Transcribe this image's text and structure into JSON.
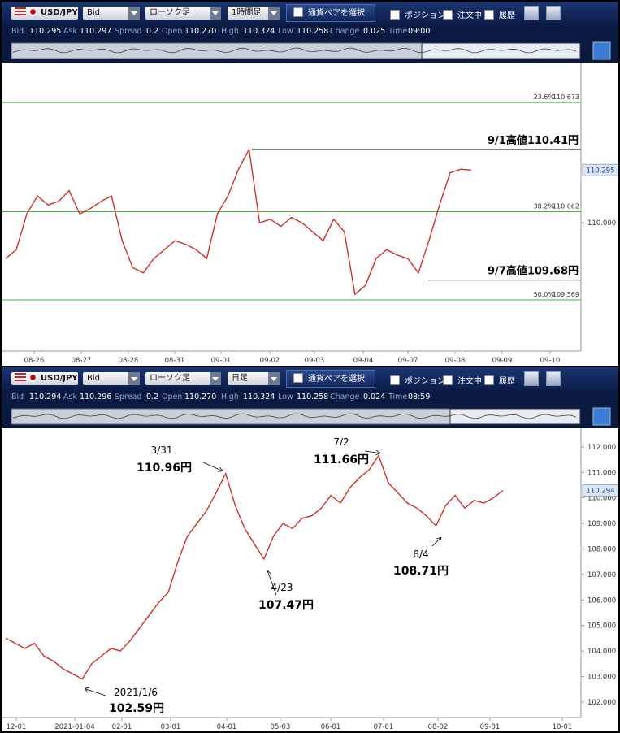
{
  "panels": [
    {
      "toolbar": {
        "pair": "USD/JPY",
        "price_type": "Bid",
        "chart_type": "ローソク足",
        "timeframe": "1時間足",
        "select_pair": "通貨ペアを選択",
        "checkboxes": [
          "ポジション",
          "注文中",
          "履歴"
        ]
      },
      "info": [
        {
          "label": "Bid",
          "value": "110.295"
        },
        {
          "label": "Ask",
          "value": "110.297"
        },
        {
          "label": "Spread",
          "value": "0.2"
        },
        {
          "label": "Open",
          "value": "110.270"
        },
        {
          "label": "High",
          "value": "110.324"
        },
        {
          "label": "Low",
          "value": "110.258"
        },
        {
          "label": "Change",
          "value": "0.025"
        },
        {
          "label": "Time",
          "value": "09:00"
        }
      ],
      "chart_data": {
        "type": "line",
        "color": "#d0302a",
        "values": [
          109.8,
          109.85,
          110.05,
          110.15,
          110.1,
          110.12,
          110.18,
          110.05,
          110.08,
          110.12,
          110.15,
          109.9,
          109.75,
          109.72,
          109.8,
          109.85,
          109.9,
          109.88,
          109.85,
          109.8,
          110.05,
          110.15,
          110.3,
          110.41,
          110.0,
          110.02,
          109.98,
          110.03,
          110.0,
          109.95,
          109.9,
          110.02,
          109.95,
          109.6,
          109.65,
          109.8,
          109.85,
          109.82,
          109.8,
          109.72,
          109.9,
          110.1,
          110.28,
          110.3,
          110.295
        ],
        "xtick_labels": [
          "08-26",
          "08-27",
          "08-28",
          "08-31",
          "09-01",
          "09-02",
          "09-03",
          "09-04",
          "09-07",
          "09-08",
          "09-09",
          "09-10"
        ],
        "ylim": [
          109.283,
          110.896
        ],
        "yticks": [
          {
            "value": 110.0,
            "label": "110.000"
          }
        ],
        "current_price": {
          "value": 110.295,
          "label": "110.295"
        },
        "fib_levels": [
          {
            "label": "23.6%",
            "value": 110.673,
            "value_label": "110.673"
          },
          {
            "label": "38.2%",
            "value": 110.062,
            "value_label": "110.062"
          },
          {
            "label": "50.0%",
            "value": 109.569,
            "value_label": "109.569"
          }
        ],
        "annotations": [
          {
            "text": "9/1高値110.41円",
            "value": 110.41
          },
          {
            "text": "9/7高値109.68円",
            "value": 109.68
          }
        ]
      }
    },
    {
      "toolbar": {
        "pair": "USD/JPY",
        "price_type": "Bid",
        "chart_type": "ローソク足",
        "timeframe": "日足",
        "select_pair": "通貨ペアを選択",
        "checkboxes": [
          "ポジション",
          "注文中",
          "履歴"
        ]
      },
      "info": [
        {
          "label": "Bid",
          "value": "110.294"
        },
        {
          "label": "Ask",
          "value": "110.296"
        },
        {
          "label": "Spread",
          "value": "0.2"
        },
        {
          "label": "Open",
          "value": "110.270"
        },
        {
          "label": "High",
          "value": "110.324"
        },
        {
          "label": "Low",
          "value": "110.258"
        },
        {
          "label": "Change",
          "value": "0.024"
        },
        {
          "label": "Time",
          "value": "08:59"
        }
      ],
      "chart_data": {
        "type": "line",
        "color": "#d0302a",
        "values": [
          104.5,
          104.3,
          104.1,
          104.3,
          103.8,
          103.6,
          103.3,
          103.1,
          102.9,
          103.5,
          103.8,
          104.1,
          104.0,
          104.4,
          104.9,
          105.4,
          105.9,
          106.3,
          107.5,
          108.5,
          109.0,
          109.5,
          110.2,
          110.96,
          109.7,
          108.8,
          108.2,
          107.6,
          108.5,
          109.0,
          108.8,
          109.2,
          109.3,
          109.6,
          110.1,
          109.8,
          110.4,
          110.8,
          111.1,
          111.66,
          110.6,
          110.2,
          109.8,
          109.6,
          109.3,
          108.9,
          109.7,
          110.1,
          109.6,
          109.9,
          109.8,
          110.0,
          110.294
        ],
        "xtick_labels": [
          "12-01",
          "2021-01-04",
          "02-01",
          "03-01",
          "04-01",
          "05-03",
          "06-01",
          "07-01",
          "08-02",
          "09-01",
          "10-01"
        ],
        "ylim": [
          101.39,
          112.73
        ],
        "yticks": [
          {
            "value": 102,
            "label": "102.000"
          },
          {
            "value": 103,
            "label": "103.000"
          },
          {
            "value": 104,
            "label": "104.000"
          },
          {
            "value": 105,
            "label": "105.000"
          },
          {
            "value": 106,
            "label": "106.000"
          },
          {
            "value": 107,
            "label": "107.000"
          },
          {
            "value": 108,
            "label": "108.000"
          },
          {
            "value": 109,
            "label": "109.000"
          },
          {
            "value": 110,
            "label": "110.000"
          },
          {
            "value": 111,
            "label": "111.000"
          },
          {
            "value": 112,
            "label": "112.000"
          }
        ],
        "current_price": {
          "value": 110.294,
          "label": "110.294"
        },
        "annotations": [
          {
            "date": "3/31",
            "value": 110.96,
            "label": "110.96円"
          },
          {
            "date": "7/2",
            "value": 111.66,
            "label": "111.66円"
          },
          {
            "date": "4/23",
            "value": 107.47,
            "label": "107.47円"
          },
          {
            "date": "8/4",
            "value": 108.71,
            "label": "108.71円"
          },
          {
            "date": "2021/1/6",
            "value": 102.59,
            "label": "102.59円"
          }
        ]
      }
    }
  ]
}
